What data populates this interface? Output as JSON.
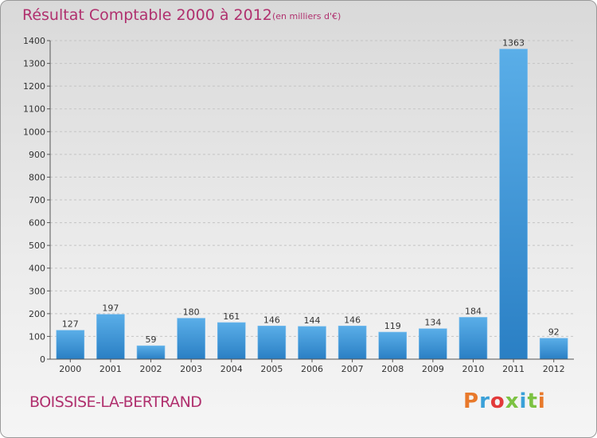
{
  "header": {
    "title": "Résultat Comptable 2000 à 2012",
    "unit": "(en milliers d'€)"
  },
  "footer": {
    "commune": "BOISSISE-LA-BERTRAND",
    "logo": "Proxiti",
    "logo_colors": [
      "#e8792b",
      "#3aa0d8",
      "#e23a3a",
      "#7cc242",
      "#3aa0d8",
      "#7cc242",
      "#e8792b"
    ]
  },
  "chart_data": {
    "type": "bar",
    "title": "Résultat Comptable 2000 à 2012",
    "xlabel": "",
    "ylabel": "",
    "categories": [
      "2000",
      "2001",
      "2002",
      "2003",
      "2004",
      "2005",
      "2006",
      "2007",
      "2008",
      "2009",
      "2010",
      "2011",
      "2012"
    ],
    "values": [
      127,
      197,
      59,
      180,
      161,
      146,
      144,
      146,
      119,
      134,
      184,
      1363,
      92
    ],
    "ylim": [
      0,
      1400
    ],
    "yticks": [
      0,
      100,
      200,
      300,
      400,
      500,
      600,
      700,
      800,
      900,
      1000,
      1100,
      1200,
      1300,
      1400
    ],
    "grid": "horizontal-dashed",
    "legend": "none",
    "colors": {
      "bar_top": "#5aaee8",
      "bar_bottom": "#2a7fc4",
      "label": "#333333"
    }
  }
}
